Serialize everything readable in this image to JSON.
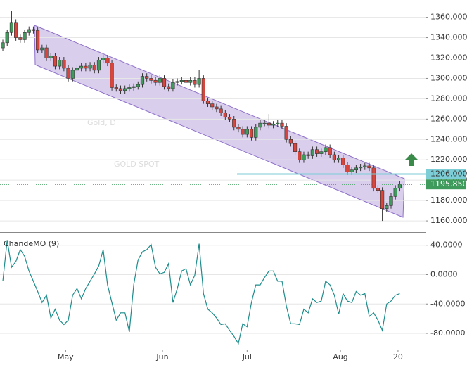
{
  "chart_data": [
    {
      "type": "candlestick",
      "watermark": "Gold, D",
      "watermark_sub": "GOLD SPOT",
      "up_color": "#3e9b5c",
      "down_color": "#d8453d",
      "open": [
        1330,
        1335,
        1345,
        1355,
        1340,
        1338,
        1345,
        1348,
        1347,
        1328,
        1330,
        1320,
        1322,
        1312,
        1318,
        1310,
        1300,
        1308,
        1310,
        1312,
        1310,
        1313,
        1308,
        1318,
        1320,
        1315,
        1291,
        1290,
        1288,
        1290,
        1291,
        1292,
        1294,
        1302,
        1300,
        1298,
        1296,
        1300,
        1292,
        1290,
        1296,
        1297,
        1298,
        1296,
        1298,
        1294,
        1300,
        1278,
        1275,
        1272,
        1270,
        1266,
        1262,
        1260,
        1252,
        1250,
        1245,
        1250,
        1242,
        1252,
        1256,
        1256,
        1254,
        1255,
        1256,
        1253,
        1240,
        1236,
        1228,
        1220,
        1225,
        1224,
        1230,
        1226,
        1228,
        1232,
        1225,
        1220,
        1222,
        1215,
        1208,
        1210,
        1212,
        1213,
        1214,
        1212,
        1192,
        1190,
        1172,
        1175,
        1184,
        1192
      ],
      "high": [
        1338,
        1348,
        1366,
        1358,
        1343,
        1348,
        1351,
        1351,
        1350,
        1333,
        1333,
        1325,
        1325,
        1321,
        1321,
        1313,
        1311,
        1313,
        1315,
        1315,
        1316,
        1316,
        1321,
        1323,
        1323,
        1318,
        1294,
        1293,
        1293,
        1294,
        1295,
        1297,
        1305,
        1305,
        1303,
        1301,
        1303,
        1303,
        1295,
        1299,
        1300,
        1301,
        1301,
        1301,
        1301,
        1308,
        1303,
        1281,
        1278,
        1275,
        1273,
        1269,
        1265,
        1263,
        1255,
        1253,
        1253,
        1253,
        1255,
        1259,
        1259,
        1265,
        1258,
        1259,
        1259,
        1256,
        1243,
        1239,
        1231,
        1228,
        1228,
        1233,
        1233,
        1231,
        1235,
        1235,
        1228,
        1225,
        1225,
        1218,
        1213,
        1215,
        1216,
        1217,
        1217,
        1215,
        1195,
        1193,
        1178,
        1187,
        1195,
        1199
      ],
      "low": [
        1327,
        1332,
        1342,
        1337,
        1335,
        1335,
        1342,
        1344,
        1325,
        1325,
        1317,
        1317,
        1309,
        1309,
        1307,
        1297,
        1297,
        1305,
        1307,
        1307,
        1307,
        1305,
        1305,
        1315,
        1312,
        1288,
        1287,
        1285,
        1285,
        1287,
        1288,
        1289,
        1291,
        1297,
        1295,
        1293,
        1293,
        1289,
        1287,
        1287,
        1293,
        1294,
        1293,
        1293,
        1291,
        1291,
        1275,
        1272,
        1269,
        1267,
        1263,
        1259,
        1257,
        1249,
        1247,
        1242,
        1242,
        1239,
        1239,
        1249,
        1253,
        1251,
        1251,
        1252,
        1250,
        1237,
        1233,
        1225,
        1217,
        1217,
        1221,
        1221,
        1223,
        1223,
        1225,
        1222,
        1217,
        1217,
        1212,
        1205,
        1205,
        1207,
        1209,
        1210,
        1209,
        1189,
        1187,
        1160,
        1169,
        1172,
        1181,
        1189
      ],
      "close": [
        1335,
        1345,
        1355,
        1340,
        1338,
        1345,
        1348,
        1347,
        1328,
        1330,
        1320,
        1322,
        1312,
        1318,
        1310,
        1300,
        1308,
        1310,
        1312,
        1310,
        1313,
        1308,
        1318,
        1320,
        1315,
        1291,
        1290,
        1288,
        1290,
        1291,
        1292,
        1294,
        1302,
        1300,
        1298,
        1296,
        1300,
        1292,
        1290,
        1296,
        1297,
        1298,
        1296,
        1298,
        1294,
        1300,
        1278,
        1275,
        1272,
        1270,
        1266,
        1262,
        1260,
        1252,
        1250,
        1245,
        1250,
        1242,
        1252,
        1256,
        1256,
        1254,
        1255,
        1256,
        1253,
        1240,
        1236,
        1228,
        1220,
        1225,
        1224,
        1230,
        1226,
        1228,
        1232,
        1225,
        1220,
        1222,
        1215,
        1208,
        1210,
        1212,
        1213,
        1214,
        1212,
        1192,
        1190,
        1172,
        1175,
        1184,
        1192,
        1196
      ],
      "ylim": [
        1149,
        1377
      ],
      "yticks": [
        {
          "value": 1160,
          "label": "1160.000"
        },
        {
          "value": 1180,
          "label": "1180.000"
        },
        {
          "value": 1200,
          "label": "1200.000"
        },
        {
          "value": 1220,
          "label": "1220.000"
        },
        {
          "value": 1240,
          "label": "1240.000"
        },
        {
          "value": 1260,
          "label": "1260.000"
        },
        {
          "value": 1280,
          "label": "1280.000"
        },
        {
          "value": 1300,
          "label": "1300.000"
        },
        {
          "value": 1320,
          "label": "1320.000"
        },
        {
          "value": 1340,
          "label": "1340.000"
        },
        {
          "value": 1360,
          "label": "1360.000"
        }
      ],
      "price_lines": [
        {
          "value": 1206,
          "label": "1206.000",
          "color": "#7ccdd6"
        },
        {
          "value": 1195.85,
          "label": "1195.850",
          "color": "#3e9b5c"
        }
      ],
      "grid": true
    },
    {
      "type": "line",
      "series": [
        {
          "name": "ChandeMO (9)",
          "color": "#1f8c8c",
          "values": [
            -9,
            47,
            10,
            18,
            34,
            25,
            5,
            -9,
            -23,
            -38,
            -28,
            -59,
            -47,
            -62,
            -68,
            -62,
            -28,
            -19,
            -33,
            -19,
            -9,
            1,
            12,
            34,
            -14,
            -38,
            -62,
            -52,
            -52,
            -78,
            -14,
            20,
            31,
            34,
            41,
            10,
            1,
            3,
            15,
            -38,
            -19,
            5,
            8,
            -14,
            -1,
            42,
            -26,
            -47,
            -52,
            -59,
            -68,
            -67,
            -76,
            -84,
            -94,
            -67,
            -71,
            -38,
            -14,
            -14,
            -4,
            5,
            5,
            -9,
            -9,
            -43,
            -67,
            -67,
            -68,
            -47,
            -52,
            -33,
            -38,
            -36,
            -9,
            -14,
            -28,
            -54,
            -26,
            -36,
            -38,
            -23,
            -28,
            -26,
            -57,
            -52,
            -62,
            -76,
            -40,
            -36,
            -28,
            -26
          ]
        }
      ],
      "ylim": [
        -102,
        56
      ],
      "yticks": [
        {
          "value": -80,
          "label": "-80.0000"
        },
        {
          "value": -40,
          "label": "-40.0000"
        },
        {
          "value": 0,
          "label": "0.0000"
        },
        {
          "value": 40,
          "label": "40.0000"
        }
      ],
      "xlim": [
        -0.65,
        96.9
      ],
      "xticks": [
        {
          "value": 14.4,
          "label": "May"
        },
        {
          "value": 36.6,
          "label": "Jun"
        },
        {
          "value": 56,
          "label": "Jul"
        },
        {
          "value": 77.4,
          "label": "Aug"
        },
        {
          "value": 90.6,
          "label": "20"
        }
      ],
      "grid": true
    }
  ]
}
